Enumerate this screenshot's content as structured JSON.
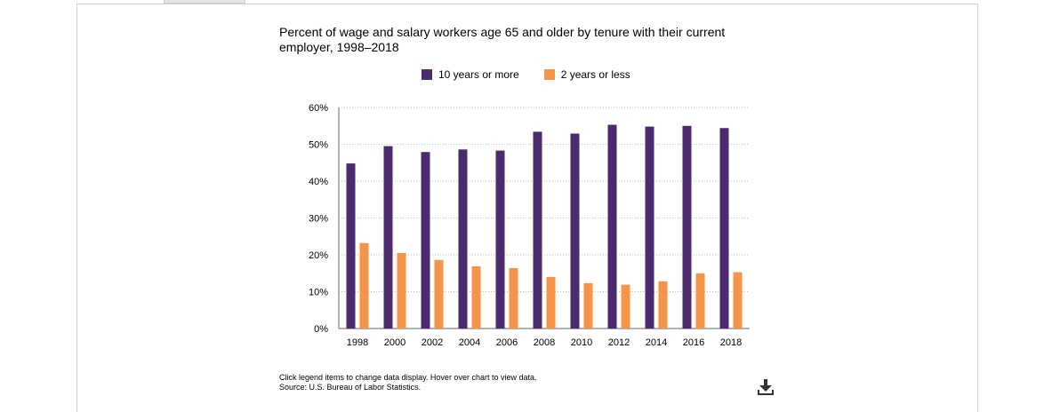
{
  "chart_data": {
    "type": "bar",
    "title": "Percent of wage and salary workers age 65 and older by tenure with their current employer, 1998–2018",
    "categories": [
      "1998",
      "2000",
      "2002",
      "2004",
      "2006",
      "2008",
      "2010",
      "2012",
      "2014",
      "2016",
      "2018"
    ],
    "series": [
      {
        "name": "10 years or more",
        "color": "#4b2a6e",
        "values": [
          44.8,
          49.5,
          47.9,
          48.6,
          48.3,
          53.4,
          52.9,
          55.3,
          54.8,
          55.0,
          54.4
        ]
      },
      {
        "name": "2 years or less",
        "color": "#f4954a",
        "values": [
          23.2,
          20.5,
          18.6,
          16.9,
          16.4,
          14.0,
          12.3,
          11.9,
          12.8,
          15.0,
          15.3
        ]
      }
    ],
    "ylim": [
      0,
      60
    ],
    "yticks": [
      "0%",
      "10%",
      "20%",
      "30%",
      "40%",
      "50%",
      "60%"
    ],
    "grid": true,
    "legend_position": "top"
  },
  "notes": {
    "instruction": "Click legend items to change data display. Hover over chart to view data.",
    "source": "Source: U.S. Bureau of Labor Statistics."
  },
  "icons": {
    "download": "download-icon"
  }
}
